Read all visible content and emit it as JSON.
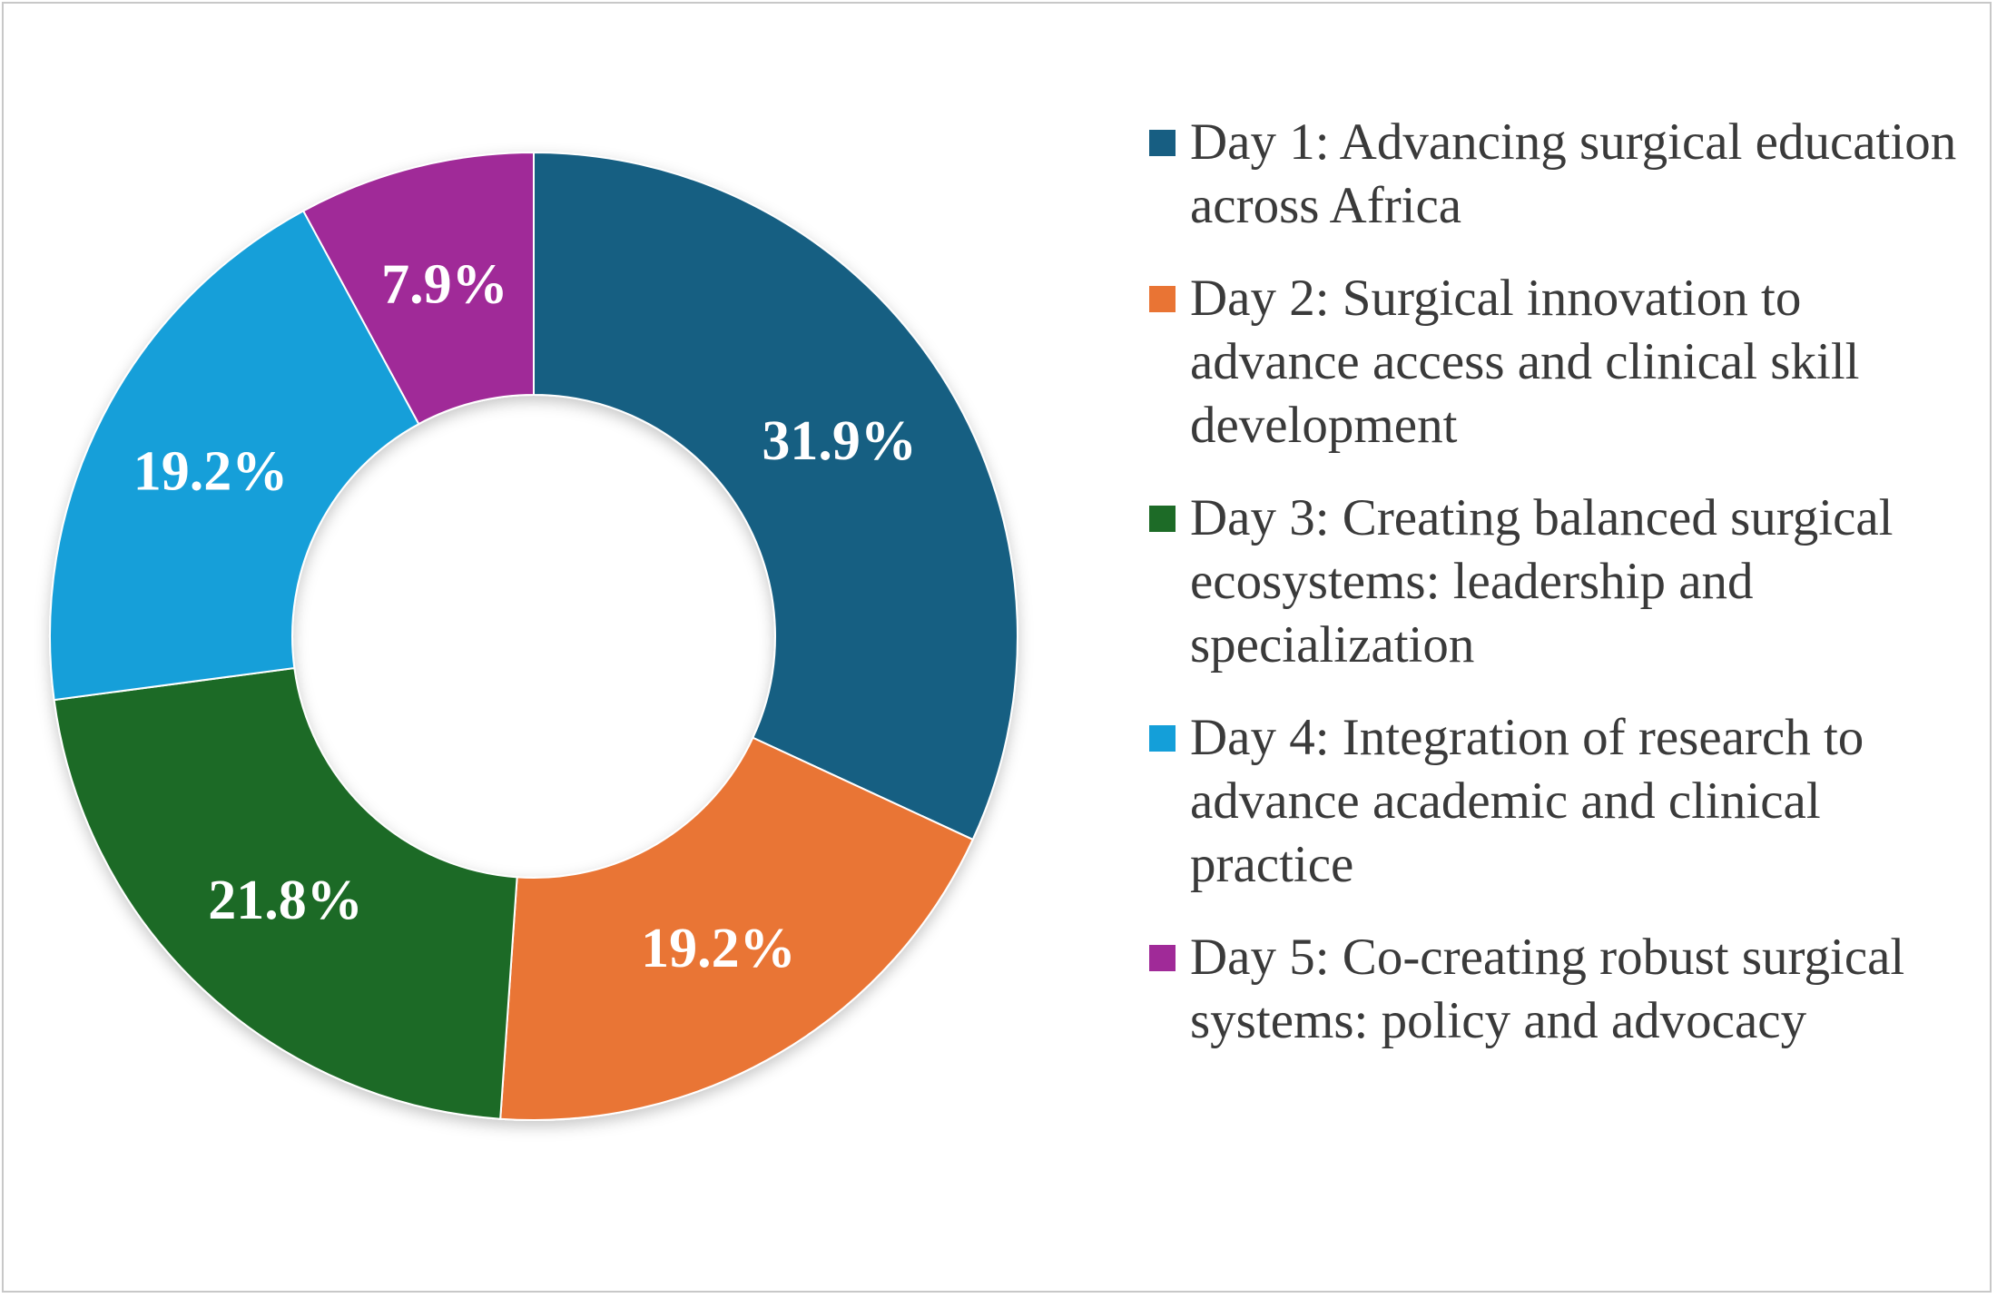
{
  "chart_data": {
    "type": "pie",
    "variant": "donut",
    "title": "",
    "legend_position": "right",
    "slices": [
      {
        "name": "Day 1: Advancing surgical education across Africa",
        "value": 31.9,
        "label": "31.9%",
        "color": "#175e82"
      },
      {
        "name": "Day 2: Surgical innovation to advance access and clinical skill development",
        "value": 19.2,
        "label": "19.2%",
        "color": "#e97434"
      },
      {
        "name": "Day 3: Creating balanced surgical ecosystems: leadership and specialization",
        "value": 21.8,
        "label": "21.8%",
        "color": "#1d6b27"
      },
      {
        "name": "Day 4: Integration of research to advance academic and clinical practice",
        "value": 19.2,
        "label": "19.2%",
        "color": "#149fd9"
      },
      {
        "name": "Day 5: Co-creating robust surgical systems: policy and advocacy",
        "value": 7.9,
        "label": "7.9%",
        "color": "#a02a98"
      }
    ]
  }
}
